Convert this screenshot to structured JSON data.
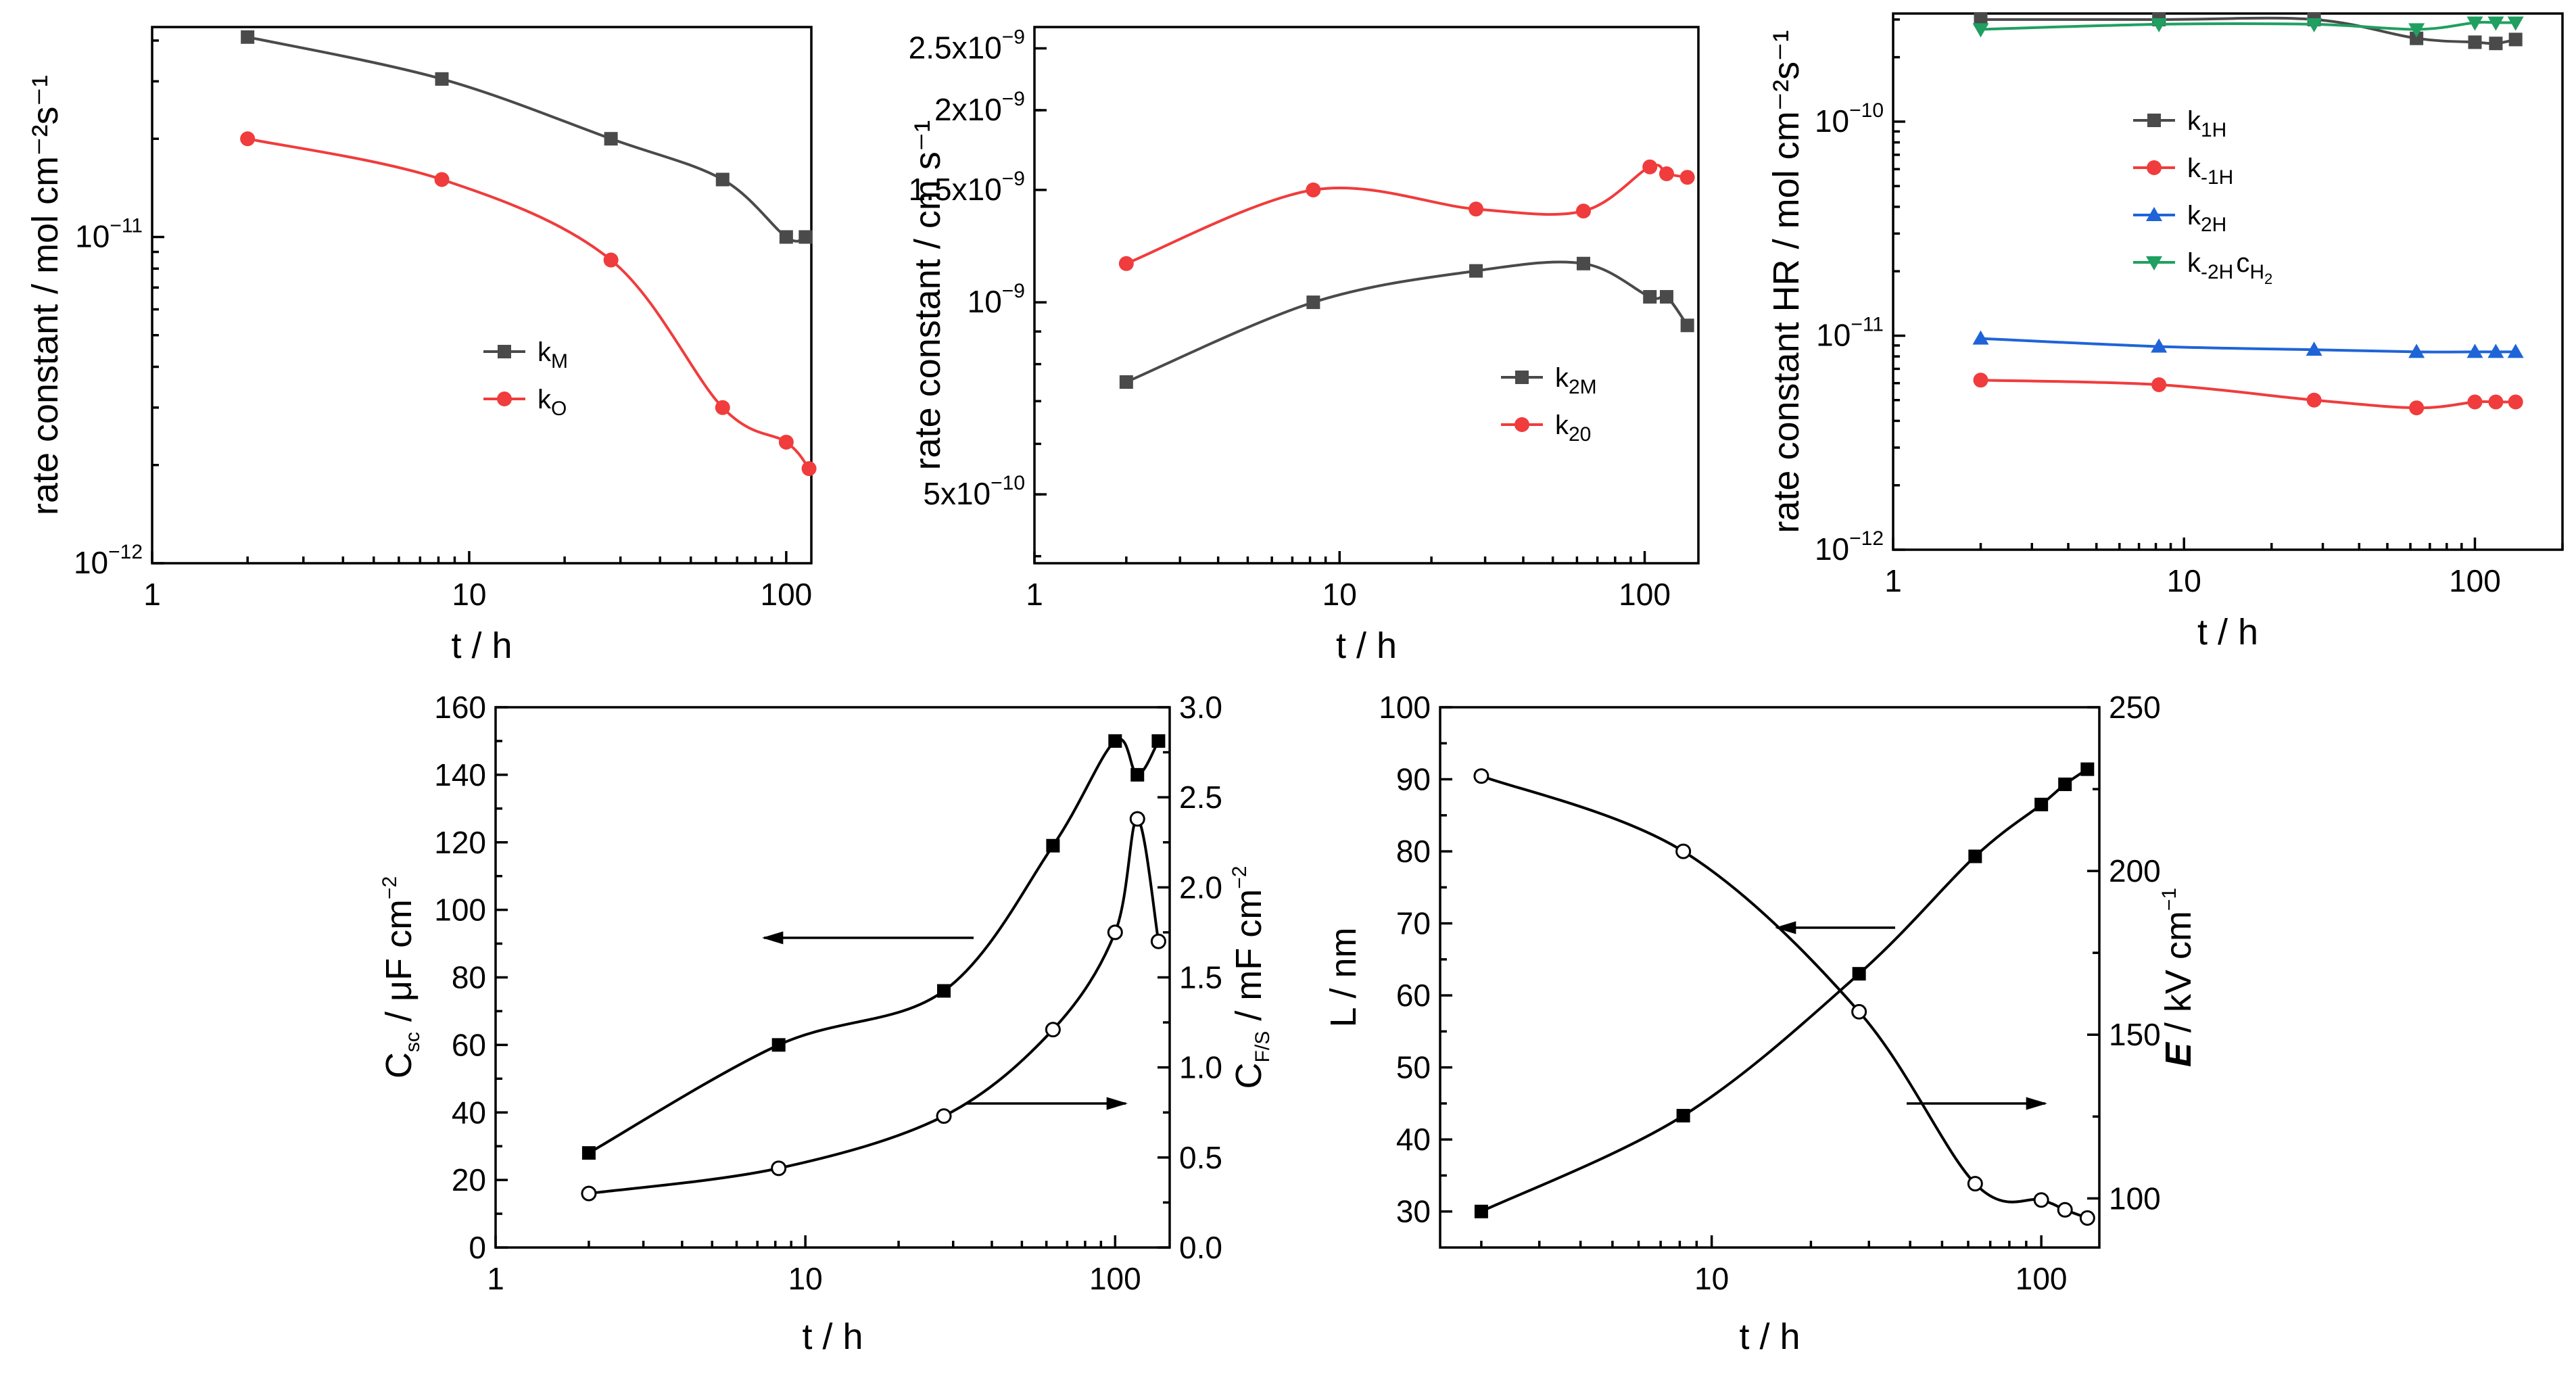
{
  "chart_data": [
    {
      "type": "scatter",
      "id": "a",
      "xscale": "log",
      "yscale": "log",
      "xlim": [
        1,
        120
      ],
      "ylim": [
        1e-12,
        4.4e-11
      ],
      "xlabel": "t / h",
      "ylabel": "rate constant / mol cm⁻²s⁻¹",
      "xticks": [
        {
          "v": 1,
          "label": "1"
        },
        {
          "v": 10,
          "label": "10"
        },
        {
          "v": 100,
          "label": "100"
        }
      ],
      "yticks": [
        {
          "v": 1e-12,
          "base": "10",
          "exp": "−12"
        },
        {
          "v": 1e-11,
          "base": "10",
          "exp": "−11"
        }
      ],
      "legend": "center-right",
      "series": [
        {
          "name": "k",
          "sub": "M",
          "color": "#4a4a4a",
          "marker": "square",
          "x": [
            2,
            8.2,
            28,
            63,
            100,
            115
          ],
          "y": [
            4.1e-11,
            3.05e-11,
            2e-11,
            1.5e-11,
            1e-11,
            1e-11
          ]
        },
        {
          "name": "k",
          "sub": "O",
          "color": "#f03c3c",
          "marker": "circle",
          "x": [
            2,
            8.2,
            28,
            63,
            100,
            118
          ],
          "y": [
            2e-11,
            1.5e-11,
            8.5e-12,
            3e-12,
            2.35e-12,
            1.95e-12
          ]
        }
      ]
    },
    {
      "type": "scatter",
      "id": "b",
      "xscale": "log",
      "yscale": "log",
      "xlim": [
        1,
        150
      ],
      "ylim": [
        3.9e-10,
        2.7e-09
      ],
      "xlabel": "t / h",
      "ylabel": "rate constant  / cm s⁻¹",
      "xticks": [
        {
          "v": 1,
          "label": "1"
        },
        {
          "v": 10,
          "label": "10"
        },
        {
          "v": 100,
          "label": "100"
        }
      ],
      "yticks": [
        {
          "v": 5e-10,
          "base": "5x10",
          "exp": "−10"
        },
        {
          "v": 1e-09,
          "base": "10",
          "exp": "−9"
        },
        {
          "v": 1.5e-09,
          "base": "1.5x10",
          "exp": "−9"
        },
        {
          "v": 2e-09,
          "base": "2x10",
          "exp": "−9"
        },
        {
          "v": 2.5e-09,
          "base": "2.5x10",
          "exp": "−9"
        }
      ],
      "legend": "bottom-right",
      "series": [
        {
          "name": "k",
          "sub": "2M",
          "color": "#4a4a4a",
          "marker": "square",
          "x": [
            2,
            8.2,
            28,
            63,
            104,
            118,
            138
          ],
          "y": [
            7.5e-10,
            1e-09,
            1.12e-09,
            1.15e-09,
            1.02e-09,
            1.02e-09,
            9.2e-10
          ]
        },
        {
          "name": "k",
          "sub": "20",
          "color": "#f03c3c",
          "marker": "circle",
          "x": [
            2,
            8.2,
            28,
            63,
            104,
            118,
            138
          ],
          "y": [
            1.15e-09,
            1.5e-09,
            1.4e-09,
            1.39e-09,
            1.63e-09,
            1.59e-09,
            1.57e-09
          ]
        }
      ]
    },
    {
      "type": "scatter",
      "id": "c",
      "xscale": "log",
      "yscale": "log",
      "xlim": [
        1,
        200
      ],
      "ylim": [
        1e-12,
        3.2e-10
      ],
      "xlabel": "t / h",
      "ylabel": "rate constant HR / mol cm⁻²s⁻¹",
      "xticks": [
        {
          "v": 1,
          "label": "1"
        },
        {
          "v": 10,
          "label": "10"
        },
        {
          "v": 100,
          "label": "100"
        }
      ],
      "yticks": [
        {
          "v": 1e-12,
          "base": "10",
          "exp": "−12"
        },
        {
          "v": 1e-11,
          "base": "10",
          "exp": "−11"
        },
        {
          "v": 1e-10,
          "base": "10",
          "exp": "−10"
        }
      ],
      "legend": "top-center",
      "series": [
        {
          "name": "k",
          "sub": "1H",
          "color": "#4a4a4a",
          "marker": "square",
          "x": [
            2,
            8.2,
            28,
            63,
            100,
            118,
            138
          ],
          "y": [
            3e-10,
            3e-10,
            3e-10,
            2.45e-10,
            2.35e-10,
            2.32e-10,
            2.42e-10
          ]
        },
        {
          "name": "k",
          "sub": "-1H",
          "color": "#f03c3c",
          "marker": "circle",
          "x": [
            2,
            8.2,
            28,
            63,
            100,
            118,
            138
          ],
          "y": [
            6.2e-12,
            5.9e-12,
            5e-12,
            4.6e-12,
            4.9e-12,
            4.9e-12,
            4.9e-12
          ]
        },
        {
          "name": "k",
          "sub": "2H",
          "color": "#1e64d8",
          "marker": "triangle-up",
          "x": [
            2,
            8.2,
            28,
            63,
            100,
            118,
            138
          ],
          "y": [
            9.7e-12,
            8.9e-12,
            8.6e-12,
            8.4e-12,
            8.4e-12,
            8.4e-12,
            8.4e-12
          ]
        },
        {
          "name": "k",
          "sub": "-2H",
          "extra": "c",
          "extra_sub": "H",
          "extra_sub2": "2",
          "color": "#1fa060",
          "marker": "triangle-down",
          "x": [
            2,
            8.2,
            28,
            63,
            100,
            118,
            138
          ],
          "y": [
            2.7e-10,
            2.85e-10,
            2.85e-10,
            2.7e-10,
            2.9e-10,
            2.9e-10,
            2.9e-10
          ]
        }
      ]
    },
    {
      "type": "scatter",
      "id": "d",
      "xscale": "log",
      "xlim": [
        1,
        150
      ],
      "ylim": [
        0,
        160
      ],
      "y2lim": [
        0,
        3.0
      ],
      "xlabel": "t / h",
      "ylabel": "C",
      "ylabel_sub": "sc",
      "ylabel_rest": " / μF cm",
      "ylabel_sup": "−2",
      "y2label": "C",
      "y2label_sub": "F/S",
      "y2label_rest": " / mF cm",
      "y2label_sup": "−2",
      "xticks": [
        {
          "v": 1,
          "label": "1"
        },
        {
          "v": 10,
          "label": "10"
        },
        {
          "v": 100,
          "label": "100"
        }
      ],
      "yticks": [
        0,
        20,
        40,
        60,
        80,
        100,
        120,
        140,
        160
      ],
      "y2ticks": [
        "0.0",
        "0.5",
        "1.0",
        "1.5",
        "2.0",
        "2.5",
        "3.0"
      ],
      "series": [
        {
          "name": "C_sc",
          "axis": "left",
          "color": "#000000",
          "marker": "square-filled",
          "x": [
            2,
            8.2,
            28,
            63,
            100,
            118,
            138
          ],
          "y": [
            28,
            60,
            76,
            119,
            150,
            140,
            150
          ]
        },
        {
          "name": "C_F/S",
          "axis": "right",
          "color": "#000000",
          "marker": "circle-open",
          "x": [
            2,
            8.2,
            28,
            63,
            100,
            118,
            138
          ],
          "y": [
            0.3,
            0.44,
            0.73,
            1.21,
            1.75,
            2.38,
            1.7
          ]
        }
      ]
    },
    {
      "type": "scatter",
      "id": "e",
      "xscale": "log",
      "xlim": [
        1.5,
        150
      ],
      "ylim": [
        25,
        100
      ],
      "y2lim": [
        85,
        250
      ],
      "xlabel": "t / h",
      "ylabel": "L / nm",
      "y2label": "E",
      "y2label_rest": " / kV cm",
      "y2label_sup": "−1",
      "xticks": [
        {
          "v": 10,
          "label": "10"
        },
        {
          "v": 100,
          "label": "100"
        }
      ],
      "yticks": [
        30,
        40,
        50,
        60,
        70,
        80,
        90,
        100
      ],
      "y2ticks": [
        100,
        150,
        200,
        250
      ],
      "series": [
        {
          "name": "L",
          "axis": "left",
          "color": "#000000",
          "marker": "square-filled",
          "x": [
            2,
            8.2,
            28,
            63,
            100,
            118,
            138
          ],
          "y": [
            30,
            43.3,
            63,
            79.3,
            86.5,
            89.3,
            91.4
          ]
        },
        {
          "name": "E",
          "axis": "right",
          "color": "#000000",
          "marker": "circle-open",
          "x": [
            2,
            8.2,
            28,
            63,
            100,
            118,
            138
          ],
          "y": [
            229,
            206,
            157,
            104.5,
            99.5,
            96.5,
            94
          ]
        }
      ]
    }
  ]
}
